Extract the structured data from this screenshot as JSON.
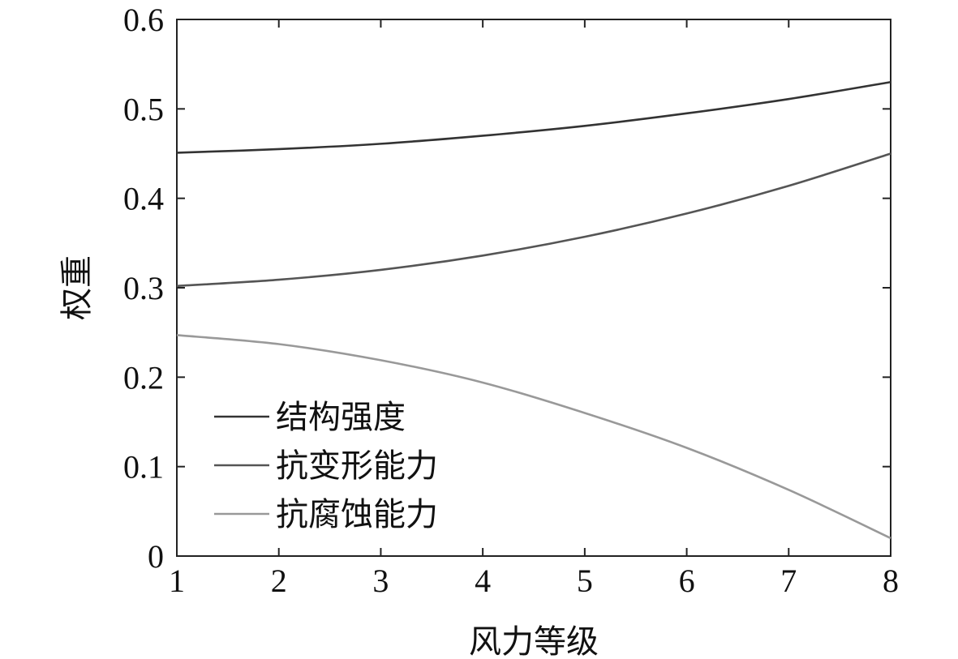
{
  "chart_data": {
    "type": "line",
    "xlabel": "风力等级",
    "ylabel": "权重",
    "xlim": [
      1,
      8
    ],
    "ylim": [
      0,
      0.6
    ],
    "xticks": [
      "1",
      "2",
      "3",
      "4",
      "5",
      "6",
      "7",
      "8"
    ],
    "yticks": [
      "0",
      "0.1",
      "0.2",
      "0.3",
      "0.4",
      "0.5",
      "0.6"
    ],
    "grid": false,
    "legend_position": "bottom-left",
    "x": [
      1,
      2,
      3,
      4,
      5,
      6,
      7,
      8
    ],
    "series": [
      {
        "name": "结构强度",
        "color": "#333333",
        "values": [
          0.451,
          0.455,
          0.461,
          0.47,
          0.481,
          0.495,
          0.511,
          0.53
        ]
      },
      {
        "name": "抗变形能力",
        "color": "#555555",
        "values": [
          0.302,
          0.309,
          0.32,
          0.336,
          0.357,
          0.383,
          0.414,
          0.45
        ]
      },
      {
        "name": "抗腐蚀能力",
        "color": "#999999",
        "values": [
          0.247,
          0.237,
          0.219,
          0.194,
          0.16,
          0.121,
          0.074,
          0.02
        ]
      }
    ]
  }
}
